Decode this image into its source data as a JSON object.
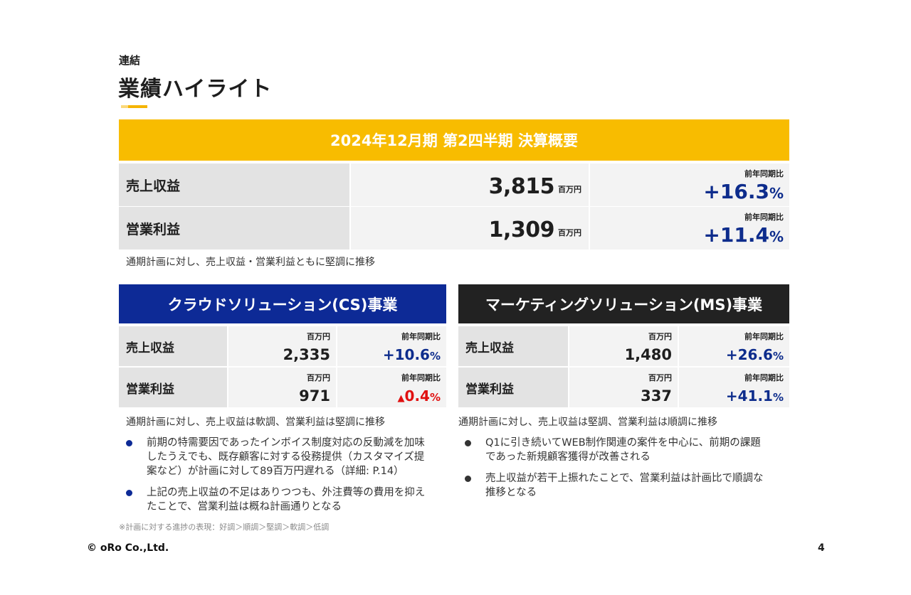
{
  "header": {
    "supertitle": "連結",
    "title": "業績ハイライト"
  },
  "summary": {
    "banner": "2024年12月期 第2四半期 決算概要",
    "unit": "百万円",
    "yoy_label": "前年同期比",
    "pct_sign": "%",
    "rows": [
      {
        "label": "売上収益",
        "value": "3,815",
        "yoy": "+16.3"
      },
      {
        "label": "営業利益",
        "value": "1,309",
        "yoy": "+11.4"
      }
    ],
    "note": "通期計画に対し、売上収益・営業利益ともに堅調に推移"
  },
  "cs": {
    "title": "クラウドソリューション(CS)事業",
    "unit": "百万円",
    "yoy_label": "前年同期比",
    "rows": [
      {
        "label": "売上収益",
        "value": "2,335",
        "yoy": "+10.6",
        "down": false
      },
      {
        "label": "営業利益",
        "value": "971",
        "yoy": "0.4",
        "down": true,
        "down_symbol": "▲"
      }
    ],
    "note": "通期計画に対し、売上収益は軟調、営業利益は堅調に推移",
    "bullets": [
      "前期の特需要因であったインボイス制度対応の反動減を加味\nしたうえでも、既存顧客に対する役務提供（カスタマイズ提\n案など）が計画に対して89百万円遅れる（詳細: P.14）",
      "上記の売上収益の不足はありつつも、外注費等の費用を抑え\nたことで、営業利益は概ね計画通りとなる"
    ]
  },
  "ms": {
    "title": "マーケティングソリューション(MS)事業",
    "unit": "百万円",
    "yoy_label": "前年同期比",
    "rows": [
      {
        "label": "売上収益",
        "value": "1,480",
        "yoy": "+26.6"
      },
      {
        "label": "営業利益",
        "value": "337",
        "yoy": "+41.1"
      }
    ],
    "note": "通期計画に対し、売上収益は堅調、営業利益は順調に推移",
    "bullets": [
      "Q1に引き続いてWEB制作関連の案件を中心に、前期の課題\nであった新規顧客獲得が改善される",
      "売上収益が若干上振れたことで、営業利益は計画比で順調な\n推移となる"
    ]
  },
  "footer": {
    "footnote": "※計画に対する進捗の表現：好調＞順調＞堅調＞軟調＞低調",
    "logo": "© oRo Co.,Ltd.",
    "page": "4"
  },
  "colors": {
    "yellow": "#f8bc00",
    "cs_blue": "#0d2a96",
    "ms_dark": "#222222",
    "yoy_blue": "#0d2c8c",
    "down_red": "#e01010"
  }
}
